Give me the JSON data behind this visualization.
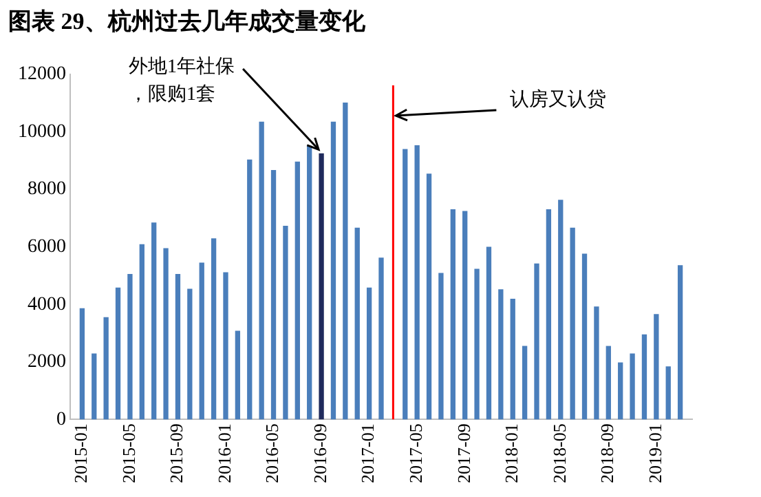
{
  "chart_data": {
    "type": "bar",
    "title": "图表 29、杭州过去几年成交量变化",
    "x": [
      "2015-01",
      "2015-02",
      "2015-03",
      "2015-04",
      "2015-05",
      "2015-06",
      "2015-07",
      "2015-08",
      "2015-09",
      "2015-10",
      "2015-11",
      "2015-12",
      "2016-01",
      "2016-02",
      "2016-03",
      "2016-04",
      "2016-05",
      "2016-06",
      "2016-07",
      "2016-08",
      "2016-09",
      "2016-10",
      "2016-11",
      "2016-12",
      "2017-01",
      "2017-02",
      "2017-03",
      "2017-04",
      "2017-05",
      "2017-06",
      "2017-07",
      "2017-08",
      "2017-09",
      "2017-10",
      "2017-11",
      "2017-12",
      "2018-01",
      "2018-02",
      "2018-03",
      "2018-04",
      "2018-05",
      "2018-06",
      "2018-07",
      "2018-08",
      "2018-09",
      "2018-10",
      "2018-11",
      "2018-12",
      "2019-01",
      "2019-02",
      "2019-03"
    ],
    "values": [
      3850,
      2280,
      3540,
      4570,
      5040,
      6080,
      6830,
      5940,
      5040,
      4530,
      5440,
      6280,
      5100,
      3070,
      9020,
      10340,
      8660,
      6720,
      8950,
      9500,
      9240,
      10340,
      11000,
      6650,
      4570,
      5610,
      null,
      9390,
      9520,
      8530,
      5080,
      7290,
      7230,
      5220,
      5990,
      4510,
      4180,
      2540,
      5410,
      7290,
      7620,
      6650,
      5750,
      3910,
      2540,
      1970,
      2280,
      2940,
      3650,
      1830,
      5350
    ],
    "colors": [
      "#4a7ebb",
      "#4a7ebb",
      "#4a7ebb",
      "#4a7ebb",
      "#4a7ebb",
      "#4a7ebb",
      "#4a7ebb",
      "#4a7ebb",
      "#4a7ebb",
      "#4a7ebb",
      "#4a7ebb",
      "#4a7ebb",
      "#4a7ebb",
      "#4a7ebb",
      "#4a7ebb",
      "#4a7ebb",
      "#4a7ebb",
      "#4a7ebb",
      "#4a7ebb",
      "#4a7ebb",
      "#1f2a5c",
      "#4a7ebb",
      "#4a7ebb",
      "#4a7ebb",
      "#4a7ebb",
      "#4a7ebb",
      "#4a7ebb",
      "#4a7ebb",
      "#4a7ebb",
      "#4a7ebb",
      "#4a7ebb",
      "#4a7ebb",
      "#4a7ebb",
      "#4a7ebb",
      "#4a7ebb",
      "#4a7ebb",
      "#4a7ebb",
      "#4a7ebb",
      "#4a7ebb",
      "#4a7ebb",
      "#4a7ebb",
      "#4a7ebb",
      "#4a7ebb",
      "#4a7ebb",
      "#4a7ebb",
      "#4a7ebb",
      "#4a7ebb",
      "#4a7ebb",
      "#4a7ebb",
      "#4a7ebb",
      "#4a7ebb"
    ],
    "xlim": [
      "2014-12",
      "2019-04"
    ],
    "xticks": [
      "2015-01",
      "2015-05",
      "2015-09",
      "2016-01",
      "2016-05",
      "2016-09",
      "2017-01",
      "2017-05",
      "2017-09",
      "2018-01",
      "2018-05",
      "2018-09",
      "2019-01"
    ],
    "ylim": [
      0,
      12000
    ],
    "yticks": [
      0,
      2000,
      4000,
      6000,
      8000,
      10000,
      12000
    ],
    "grid": false,
    "legend": false,
    "ref_lines": [
      {
        "axis": "x",
        "value": "2017-03",
        "label": "认房又认贷",
        "color": "#ff0000"
      }
    ],
    "annotations": [
      {
        "text": "外地1年社保，限购1套",
        "x": "2016-09",
        "y": 9240
      }
    ]
  }
}
